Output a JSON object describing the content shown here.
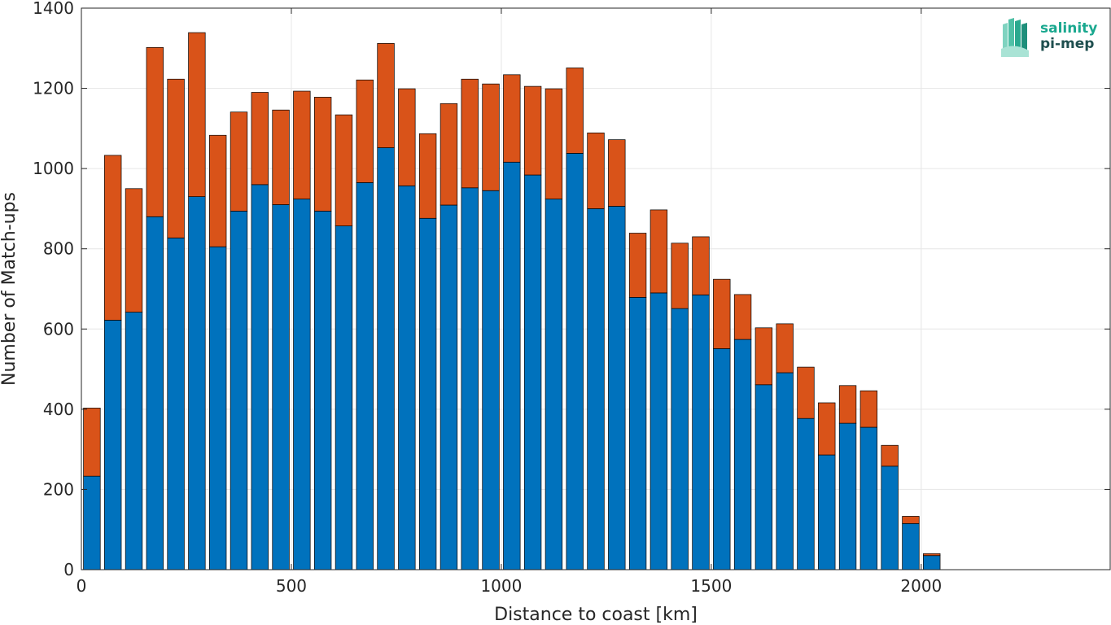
{
  "chart_data": {
    "type": "bar",
    "stacked": true,
    "xlabel": "Distance to coast [km]",
    "ylabel": "Number of Match-ups",
    "xlim": [
      0,
      2450
    ],
    "ylim": [
      0,
      1400
    ],
    "xticks": [
      0,
      500,
      1000,
      1500,
      2000
    ],
    "yticks": [
      0,
      200,
      400,
      600,
      800,
      1000,
      1200,
      1400
    ],
    "bin_width": 50,
    "grid": true,
    "x": [
      25,
      75,
      125,
      175,
      225,
      275,
      325,
      375,
      425,
      475,
      525,
      575,
      625,
      675,
      725,
      775,
      825,
      875,
      925,
      975,
      1025,
      1075,
      1125,
      1175,
      1225,
      1275,
      1325,
      1375,
      1425,
      1475,
      1525,
      1575,
      1625,
      1675,
      1725,
      1775,
      1825,
      1875,
      1925,
      1975,
      2025
    ],
    "series": [
      {
        "color": "#0072BD",
        "values": [
          233,
          622,
          642,
          880,
          827,
          930,
          805,
          894,
          960,
          910,
          924,
          894,
          857,
          965,
          1052,
          957,
          876,
          909,
          952,
          945,
          1016,
          984,
          924,
          1038,
          900,
          906,
          679,
          690,
          651,
          685,
          551,
          574,
          461,
          491,
          377,
          286,
          365,
          355,
          258,
          115,
          35
        ]
      },
      {
        "color": "#D95319",
        "values": [
          170,
          411,
          308,
          422,
          396,
          409,
          278,
          247,
          230,
          236,
          269,
          284,
          277,
          256,
          260,
          242,
          211,
          253,
          271,
          266,
          218,
          221,
          275,
          213,
          189,
          166,
          160,
          207,
          163,
          145,
          173,
          112,
          142,
          122,
          128,
          130,
          94,
          91,
          52,
          18,
          5
        ]
      }
    ]
  },
  "logo": {
    "line1": "salinity",
    "line2": "pi-mep",
    "color1": "#1aa88f",
    "color2": "#1f4f4f"
  }
}
